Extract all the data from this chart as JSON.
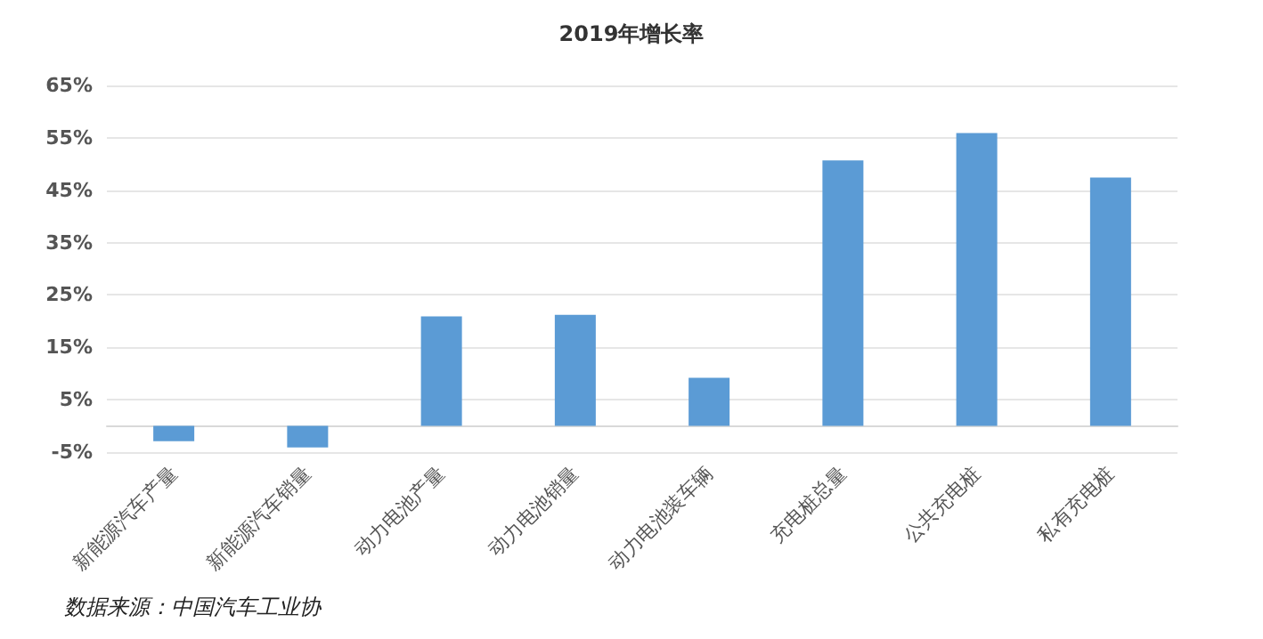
{
  "chart_data": {
    "type": "bar",
    "title": "2019年增长率",
    "categories": [
      "新能源汽车产量",
      "新能源汽车销量",
      "动力电池产量",
      "动力电池销量",
      "动力电池装车辆",
      "充电桩总量",
      "公共充电桩",
      "私有充电桩"
    ],
    "values": [
      -2.9,
      -4.1,
      20.9,
      21.2,
      9.2,
      50.7,
      55.9,
      47.4
    ],
    "color": "#5b9bd5",
    "ylim": [
      -5,
      65
    ],
    "yticks": [
      {
        "value": -5,
        "label": "-5%"
      },
      {
        "value": 5,
        "label": "5%"
      },
      {
        "value": 15,
        "label": "15%"
      },
      {
        "value": 25,
        "label": "25%"
      },
      {
        "value": 35,
        "label": "35%"
      },
      {
        "value": 45,
        "label": "45%"
      },
      {
        "value": 55,
        "label": "55%"
      },
      {
        "value": 65,
        "label": "65%"
      }
    ],
    "grid": "y",
    "annotations": [
      "数据来源：中国汽车工业协"
    ]
  }
}
